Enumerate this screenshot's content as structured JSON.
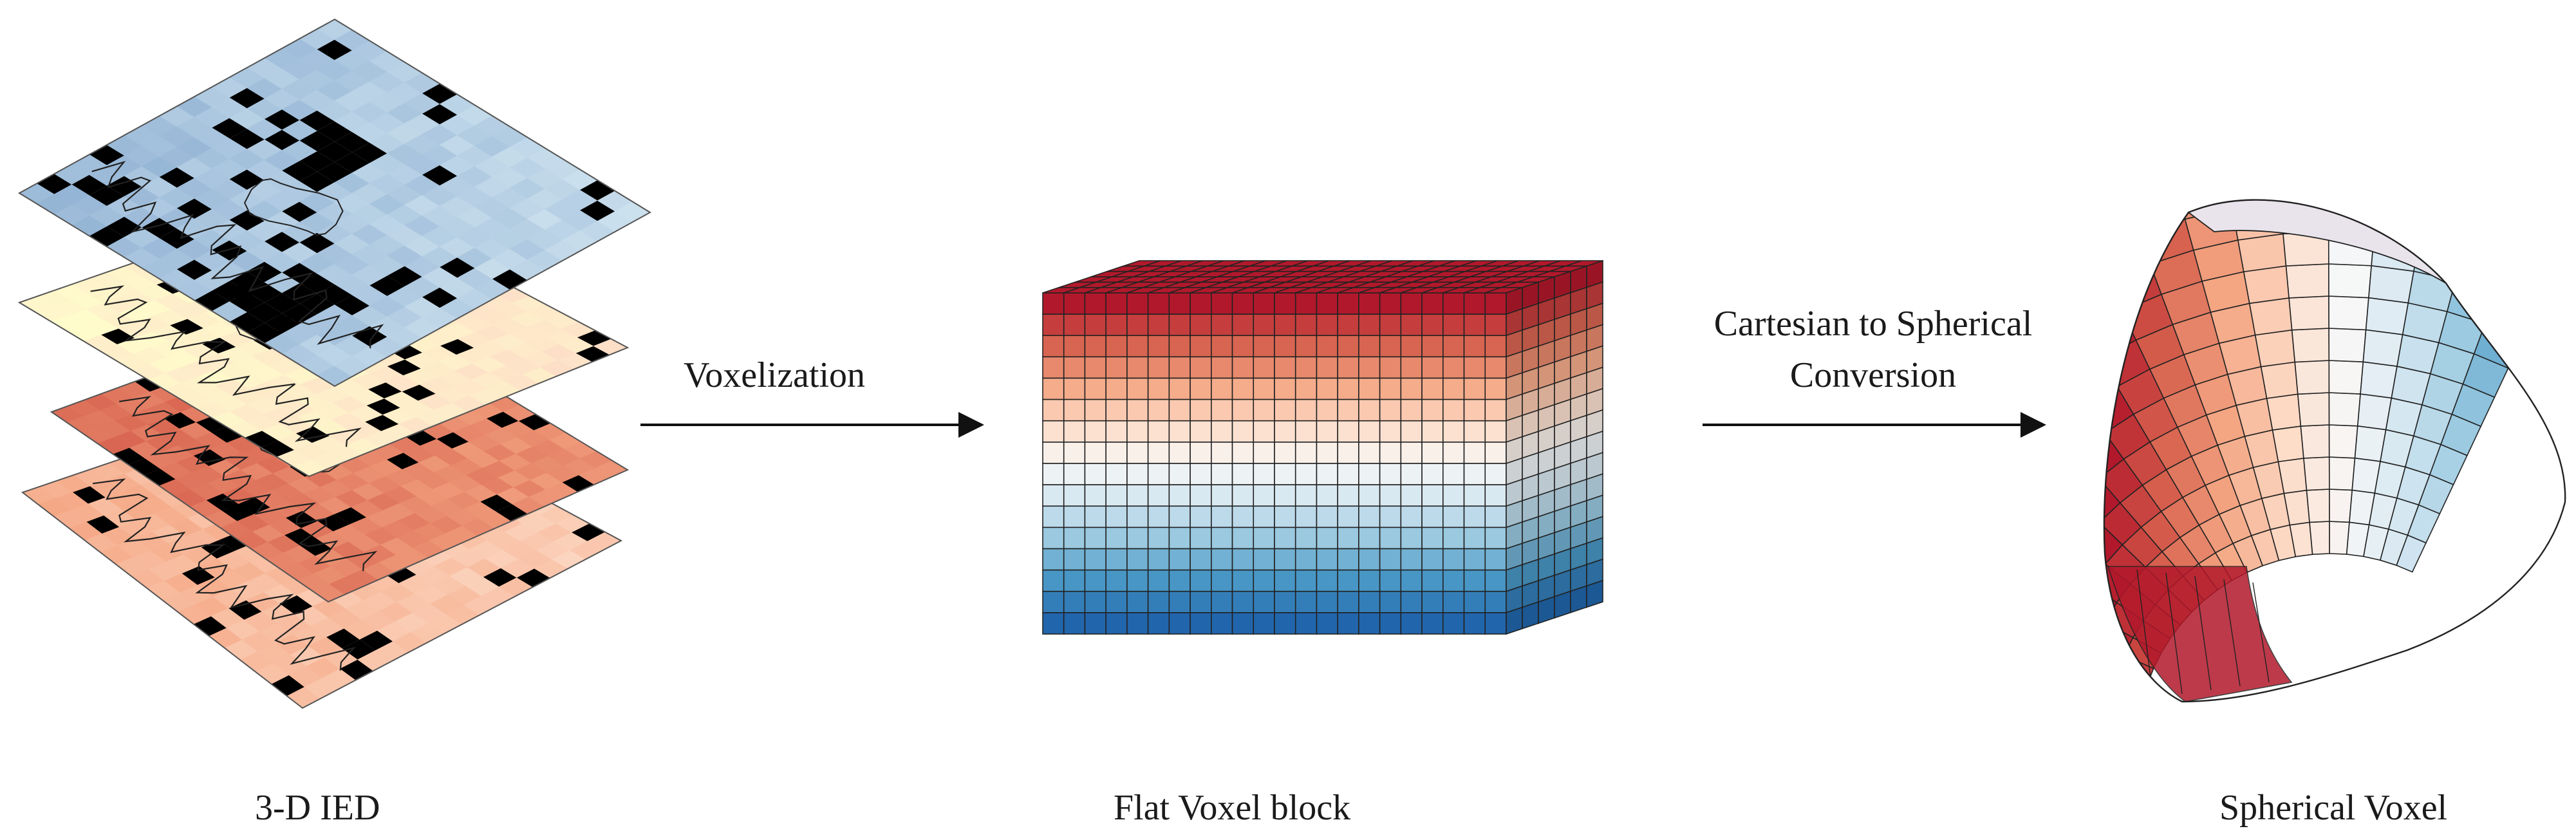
{
  "labels": {
    "stage1": "3-D IED",
    "stage2": "Flat Voxel block",
    "stage3": "Spherical Voxel",
    "arrow1": "Voxelization",
    "arrow2_line1": "Cartesian to Spherical",
    "arrow2_line2": "Conversion"
  },
  "colors": {
    "dark_red": "#b2182b",
    "red": "#d6604d",
    "salmon": "#f4a582",
    "light_peach": "#fddbc7",
    "neutral": "#f7f7f7",
    "light_blue": "#d1e5f0",
    "blue": "#92c5de",
    "mid_blue": "#4393c3",
    "dark_blue": "#2166ac",
    "pale_yellow": "#ffffcc",
    "steel_blue": "#8fb0d3"
  },
  "icons": [
    "layer-stack-icon",
    "voxel-cube-icon",
    "spherical-voxel-icon",
    "right-arrow-icon"
  ]
}
